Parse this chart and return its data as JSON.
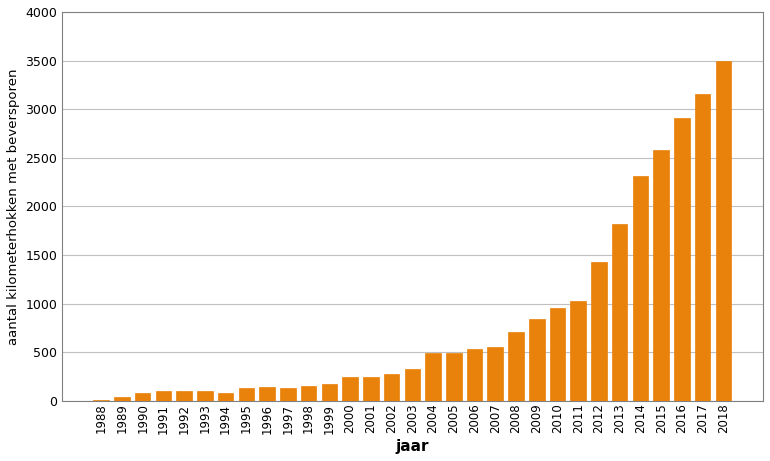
{
  "years": [
    1988,
    1989,
    1990,
    1991,
    1992,
    1993,
    1994,
    1995,
    1996,
    1997,
    1998,
    1999,
    2000,
    2001,
    2002,
    2003,
    2004,
    2005,
    2006,
    2007,
    2008,
    2009,
    2010,
    2011,
    2012,
    2013,
    2014,
    2015,
    2016,
    2017,
    2018
  ],
  "values": [
    5,
    40,
    75,
    100,
    100,
    95,
    80,
    130,
    140,
    130,
    150,
    170,
    240,
    245,
    270,
    330,
    490,
    490,
    530,
    555,
    710,
    840,
    950,
    1030,
    1430,
    1820,
    2310,
    2580,
    2910,
    3160,
    3500
  ],
  "bar_color": "#e8820a",
  "xlabel": "jaar",
  "ylabel": "aantal kilometerhokken met beversporen",
  "ylim": [
    0,
    4000
  ],
  "yticks": [
    0,
    500,
    1000,
    1500,
    2000,
    2500,
    3000,
    3500,
    4000
  ],
  "background_color": "#ffffff",
  "grid_color": "#c0c0c0",
  "bar_width": 0.75
}
